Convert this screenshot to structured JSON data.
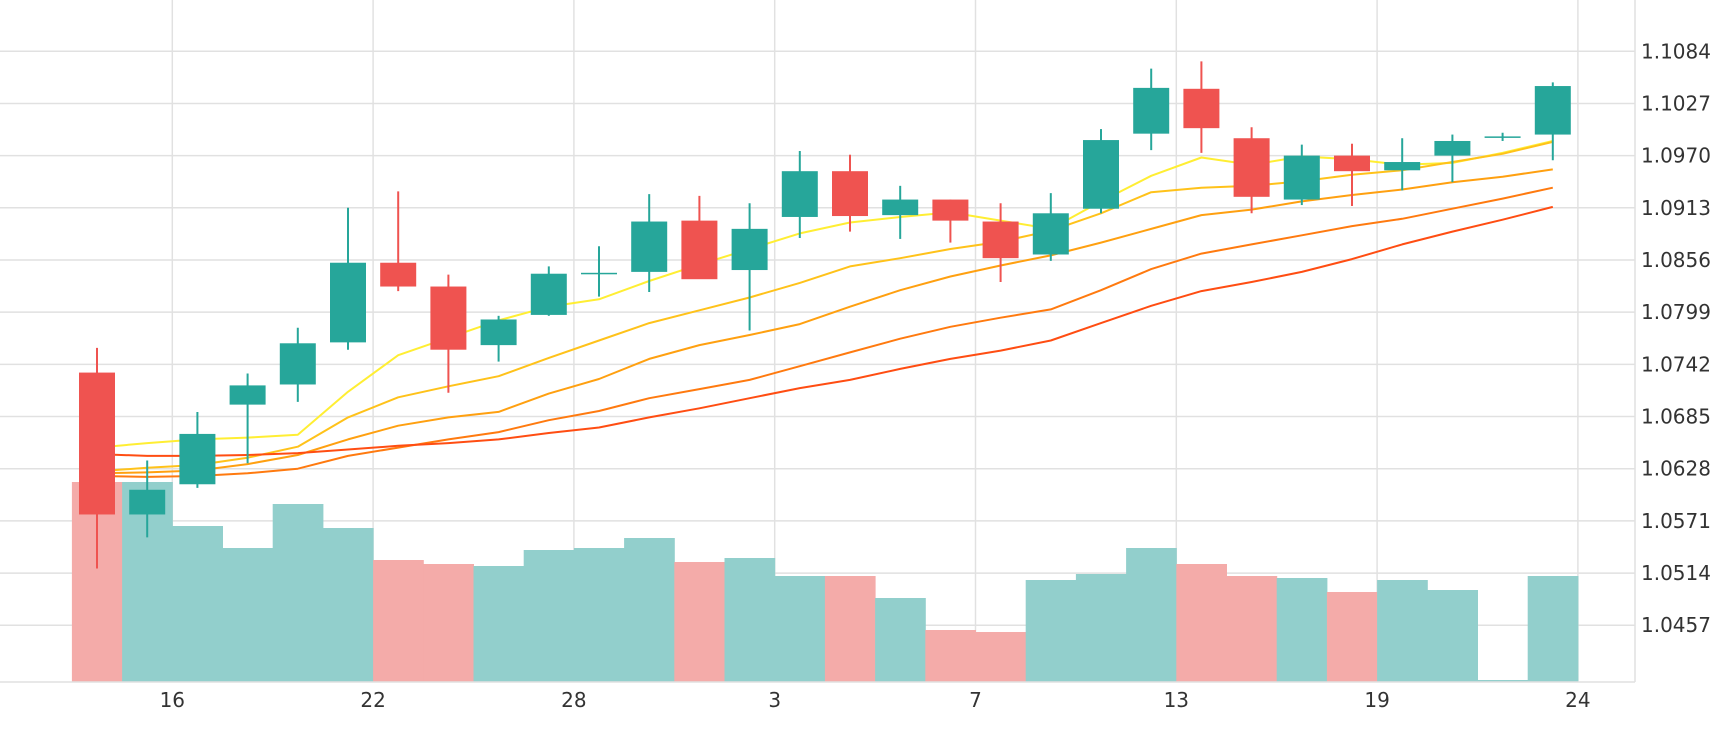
{
  "colors": {
    "up": "#26a69a",
    "down": "#ef5350",
    "up_volume": "#92cfcc",
    "down_volume": "#f4aba9",
    "grid": "#e1e1e1",
    "axis_text": "#333333",
    "ma_lines": [
      "#ffee33",
      "#ffc21a",
      "#ffa010",
      "#ff7a0f",
      "#ff4d12"
    ]
  },
  "chart_data": {
    "type": "candlestick",
    "grid": true,
    "price_axis": {
      "position": "right",
      "ticks": [
        1.1084,
        1.1027,
        1.097,
        1.0913,
        1.0856,
        1.0799,
        1.0742,
        1.0685,
        1.0628,
        1.0571,
        1.0514,
        1.0457
      ],
      "tick_labels": [
        "1.1084",
        "1.1027",
        "1.0970",
        "1.0913",
        "1.0856",
        "1.0799",
        "1.0742",
        "1.0685",
        "1.0628",
        "1.0571",
        "1.0514",
        "1.0457"
      ],
      "range": [
        1.0395,
        1.114
      ]
    },
    "time_axis": {
      "position": "bottom",
      "tick_labels": [
        {
          "label": "16",
          "index": 1.5
        },
        {
          "label": "22",
          "index": 5.5
        },
        {
          "label": "28",
          "index": 9.5
        },
        {
          "label": "3",
          "index": 13.5
        },
        {
          "label": "7",
          "index": 17.5
        },
        {
          "label": "13",
          "index": 21.5
        },
        {
          "label": "19",
          "index": 25.5
        },
        {
          "label": "24",
          "index": 29.5
        }
      ]
    },
    "candles": [
      {
        "open": 1.0733,
        "high": 1.076,
        "low": 1.0519,
        "close": 1.0578
      },
      {
        "open": 1.0578,
        "high": 1.0637,
        "low": 1.0553,
        "close": 1.0605
      },
      {
        "open": 1.0611,
        "high": 1.069,
        "low": 1.0607,
        "close": 1.0666
      },
      {
        "open": 1.0698,
        "high": 1.0732,
        "low": 1.0634,
        "close": 1.0719
      },
      {
        "open": 1.072,
        "high": 1.0782,
        "low": 1.0701,
        "close": 1.0765
      },
      {
        "open": 1.0766,
        "high": 1.0913,
        "low": 1.0758,
        "close": 1.0853
      },
      {
        "open": 1.0853,
        "high": 1.0931,
        "low": 1.0822,
        "close": 1.0827
      },
      {
        "open": 1.0827,
        "high": 1.084,
        "low": 1.0711,
        "close": 1.0758
      },
      {
        "open": 1.0763,
        "high": 1.0795,
        "low": 1.0745,
        "close": 1.0791
      },
      {
        "open": 1.0796,
        "high": 1.0849,
        "low": 1.0795,
        "close": 1.0841
      },
      {
        "open": 1.0842,
        "high": 1.0871,
        "low": 1.0816,
        "close": 1.0842
      },
      {
        "open": 1.0843,
        "high": 1.0928,
        "low": 1.0821,
        "close": 1.0898
      },
      {
        "open": 1.0899,
        "high": 1.0926,
        "low": 1.0836,
        "close": 1.0835
      },
      {
        "open": 1.0845,
        "high": 1.0918,
        "low": 1.0779,
        "close": 1.089
      },
      {
        "open": 1.0903,
        "high": 1.0975,
        "low": 1.088,
        "close": 1.0953
      },
      {
        "open": 1.0953,
        "high": 1.0971,
        "low": 1.0887,
        "close": 1.0904
      },
      {
        "open": 1.0905,
        "high": 1.0937,
        "low": 1.0879,
        "close": 1.0922
      },
      {
        "open": 1.0922,
        "high": 1.0922,
        "low": 1.0875,
        "close": 1.0899
      },
      {
        "open": 1.0898,
        "high": 1.0918,
        "low": 1.0832,
        "close": 1.0858
      },
      {
        "open": 1.0862,
        "high": 1.0929,
        "low": 1.0855,
        "close": 1.0907
      },
      {
        "open": 1.0912,
        "high": 1.0999,
        "low": 1.0907,
        "close": 1.0987
      },
      {
        "open": 1.0994,
        "high": 1.1065,
        "low": 1.0976,
        "close": 1.1044
      },
      {
        "open": 1.1043,
        "high": 1.1073,
        "low": 1.0973,
        "close": 1.1
      },
      {
        "open": 1.0989,
        "high": 1.1001,
        "low": 1.0907,
        "close": 1.0925
      },
      {
        "open": 1.0922,
        "high": 1.0982,
        "low": 1.0916,
        "close": 1.097
      },
      {
        "open": 1.097,
        "high": 1.0983,
        "low": 1.0915,
        "close": 1.0953
      },
      {
        "open": 1.0954,
        "high": 1.0989,
        "low": 1.0932,
        "close": 1.0963
      },
      {
        "open": 1.097,
        "high": 1.0993,
        "low": 1.0941,
        "close": 1.0986
      },
      {
        "open": 1.0991,
        "high": 1.0995,
        "low": 1.0986,
        "close": 1.0991
      },
      {
        "open": 1.0993,
        "high": 1.105,
        "low": 1.0965,
        "close": 1.1046
      }
    ],
    "volume": {
      "max": 100,
      "values": [
        100,
        100,
        78,
        67,
        89,
        77,
        61,
        59,
        58,
        66,
        67,
        72,
        60,
        62,
        53,
        53,
        42,
        26,
        25,
        51,
        54,
        67,
        59,
        53,
        52,
        45,
        51,
        46,
        1,
        53
      ]
    },
    "moving_averages": [
      {
        "values": [
          1.0651,
          1.0656,
          1.066,
          1.0662,
          1.0665,
          1.0712,
          1.0752,
          1.0771,
          1.079,
          1.0805,
          1.0813,
          1.0833,
          1.0851,
          1.0868,
          1.0885,
          1.0897,
          1.0903,
          1.0908,
          1.0899,
          1.089,
          1.092,
          1.0948,
          1.0968,
          1.096,
          1.0969,
          1.0966,
          1.096,
          1.0962,
          1.0973,
          1.0986
        ]
      },
      {
        "values": [
          1.0625,
          1.0629,
          1.0632,
          1.064,
          1.0652,
          1.0684,
          1.0706,
          1.0718,
          1.0729,
          1.0749,
          1.0768,
          1.0787,
          1.0801,
          1.0815,
          1.0831,
          1.0849,
          1.0858,
          1.0868,
          1.0876,
          1.0888,
          1.0907,
          1.093,
          1.0935,
          1.0937,
          1.0942,
          1.0949,
          1.0954,
          1.0963,
          1.0972,
          1.0985
        ]
      },
      {
        "values": [
          1.0623,
          1.0624,
          1.0626,
          1.0633,
          1.0643,
          1.066,
          1.0675,
          1.0684,
          1.069,
          1.071,
          1.0726,
          1.0748,
          1.0763,
          1.0774,
          1.0786,
          1.0805,
          1.0823,
          1.0838,
          1.085,
          1.0861,
          1.0875,
          1.089,
          1.0905,
          1.0911,
          1.092,
          1.0927,
          1.0933,
          1.0941,
          1.0947,
          1.0955
        ]
      },
      {
        "values": [
          1.062,
          1.0619,
          1.062,
          1.0623,
          1.0628,
          1.0642,
          1.0651,
          1.066,
          1.0668,
          1.0681,
          1.0691,
          1.0705,
          1.0715,
          1.0725,
          1.074,
          1.0755,
          1.077,
          1.0783,
          1.0793,
          1.0802,
          1.0823,
          1.0846,
          1.0863,
          1.0873,
          1.0883,
          1.0893,
          1.0901,
          1.0912,
          1.0923,
          1.0935
        ]
      },
      {
        "values": [
          1.0644,
          1.0642,
          1.0642,
          1.0643,
          1.0645,
          1.0649,
          1.0653,
          1.0656,
          1.066,
          1.0667,
          1.0673,
          1.0684,
          1.0694,
          1.0705,
          1.0716,
          1.0725,
          1.0737,
          1.0748,
          1.0757,
          1.0768,
          1.0787,
          1.0806,
          1.0822,
          1.0832,
          1.0843,
          1.0857,
          1.0873,
          1.0887,
          1.09,
          1.0914
        ]
      }
    ]
  }
}
